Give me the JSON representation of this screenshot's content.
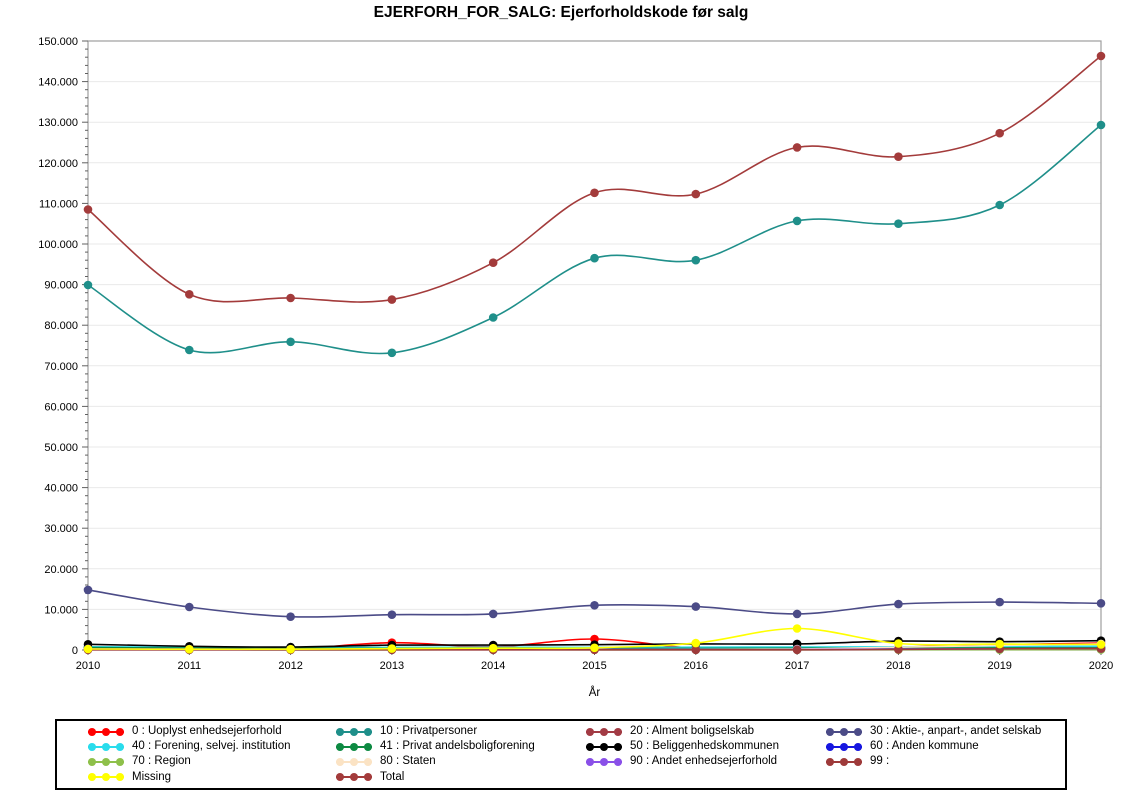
{
  "page": {
    "background": "#ffffff"
  },
  "chart_data": {
    "type": "line",
    "title": "EJERFORH_FOR_SALG: Ejerforholdskode før salg",
    "xlabel": "År",
    "ylabel": "",
    "x": [
      2010,
      2011,
      2012,
      2013,
      2014,
      2015,
      2016,
      2017,
      2018,
      2019,
      2020
    ],
    "ylim": [
      0,
      150000
    ],
    "y_tick_step": 10000,
    "y_minor_tick_step": 2000,
    "y_tick_labels": [
      "0",
      "10.000",
      "20.000",
      "30.000",
      "40.000",
      "50.000",
      "60.000",
      "70.000",
      "80.000",
      "90.000",
      "100.000",
      "110.000",
      "120.000",
      "130.000",
      "140.000",
      "150.000"
    ],
    "grid": "horizontal-major-only",
    "legend_position": "bottom",
    "marker": "filled-circle",
    "line_style": "smooth",
    "series": [
      {
        "name": "0 : Uoplyst enhedsejerforhold",
        "color": "#ff0000",
        "values": [
          500,
          450,
          250,
          1800,
          800,
          2700,
          400,
          250,
          700,
          1300,
          1700
        ]
      },
      {
        "name": "10 : Privatpersoner",
        "color": "#1f8f8a",
        "values": [
          89900,
          73900,
          75900,
          73200,
          81900,
          96500,
          96000,
          105700,
          105000,
          109600,
          129300
        ]
      },
      {
        "name": "20 : Alment boligselskab",
        "color": "#a23b44",
        "values": [
          700,
          600,
          500,
          500,
          600,
          500,
          500,
          450,
          500,
          550,
          600
        ]
      },
      {
        "name": "30 : Aktie-, anpart-, andet selskab",
        "color": "#4b4b87",
        "values": [
          14800,
          10600,
          8200,
          8700,
          8900,
          11000,
          10700,
          8900,
          11300,
          11800,
          11500
        ]
      },
      {
        "name": "40 : Forening, selvej. institution",
        "color": "#29dcec",
        "values": [
          800,
          700,
          650,
          650,
          700,
          650,
          700,
          750,
          800,
          850,
          900
        ]
      },
      {
        "name": "41 : Privat andelsboligforening",
        "color": "#0d8a42",
        "values": [
          600,
          500,
          450,
          400,
          500,
          400,
          400,
          450,
          500,
          500,
          550
        ]
      },
      {
        "name": "50 : Beliggenhedskommunen",
        "color": "#000000",
        "values": [
          1400,
          900,
          750,
          1200,
          1200,
          1300,
          1500,
          1500,
          2200,
          2050,
          2300
        ]
      },
      {
        "name": "60 : Anden kommune",
        "color": "#1616e0",
        "values": [
          200,
          150,
          150,
          150,
          150,
          150,
          150,
          150,
          200,
          200,
          250
        ]
      },
      {
        "name": "70 : Region",
        "color": "#8ec04a",
        "values": [
          100,
          80,
          60,
          60,
          70,
          60,
          60,
          60,
          80,
          80,
          90
        ]
      },
      {
        "name": "80 : Staten",
        "color": "#fbe3c4",
        "values": [
          150,
          120,
          100,
          100,
          120,
          100,
          150,
          250,
          700,
          1100,
          1500
        ]
      },
      {
        "name": "90 : Andet enhedsejerforhold",
        "color": "#8a50e8",
        "values": [
          300,
          250,
          200,
          200,
          150,
          120,
          100,
          100,
          250,
          300,
          350
        ]
      },
      {
        "name": "99 :",
        "color": "#9e3a3a",
        "values": [
          60,
          50,
          50,
          50,
          50,
          50,
          50,
          60,
          150,
          300,
          350
        ]
      },
      {
        "name": "Missing",
        "color": "#ffff00",
        "values": [
          250,
          200,
          200,
          350,
          450,
          550,
          1700,
          5300,
          1600,
          1450,
          1350
        ]
      },
      {
        "name": "Total",
        "color": "#a33b3b",
        "values": [
          108500,
          87600,
          86700,
          86300,
          95400,
          112600,
          112300,
          123800,
          121500,
          127300,
          146300
        ]
      }
    ]
  },
  "style": {
    "frame_color": "#9e9e9e",
    "grid_color": "#e9e9e9",
    "tick_color": "#606060",
    "text_color": "#000000"
  }
}
